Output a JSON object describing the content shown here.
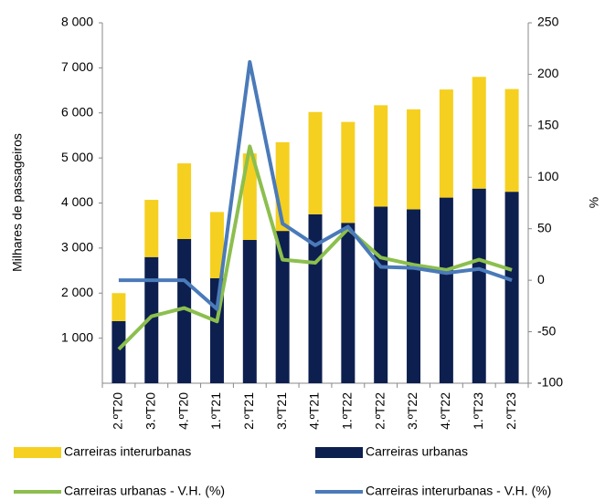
{
  "chart_data": {
    "type": "bar",
    "y_label": "Milhares de passageiros",
    "y2_label": "%",
    "categories": [
      "2.ºT20",
      "3.ºT20",
      "4.ºT20",
      "1.ºT21",
      "2.ºT21",
      "3.ºT21",
      "4.ºT21",
      "1.ºT22",
      "2.ºT22",
      "3.ºT22",
      "4.ºT22",
      "1.ºT23",
      "2.ºT23"
    ],
    "series": [
      {
        "name": "Carreiras interurbanas",
        "type": "bar",
        "color": "#f5d020",
        "values": [
          620,
          1270,
          1680,
          1470,
          1920,
          1970,
          2270,
          2240,
          2250,
          2220,
          2400,
          2480,
          2280
        ]
      },
      {
        "name": "Carreiras urbanas",
        "type": "bar",
        "color": "#0d1f4f",
        "values": [
          1380,
          2800,
          3200,
          2330,
          3180,
          3380,
          3750,
          3560,
          3920,
          3860,
          4120,
          4320,
          4250
        ]
      },
      {
        "name": "Carreiras urbanas - V.H. (%)",
        "type": "line",
        "axis": "y2",
        "color": "#8cbf4e",
        "values": [
          -67,
          -35,
          -27,
          -40,
          130,
          20,
          17,
          50,
          22,
          15,
          10,
          20,
          10
        ]
      },
      {
        "name": "Carreiras interurbanas - V.H. (%)",
        "type": "line",
        "axis": "y2",
        "color": "#4a7ab9",
        "values": [
          0,
          0,
          0,
          -28,
          212,
          55,
          34,
          52,
          13,
          12,
          7,
          11,
          0
        ]
      }
    ],
    "ylim": [
      0,
      8000
    ],
    "yticks": [
      {
        "value": 1000,
        "label": "1 000"
      },
      {
        "value": 2000,
        "label": "2 000"
      },
      {
        "value": 3000,
        "label": "3 000"
      },
      {
        "value": 4000,
        "label": "4 000"
      },
      {
        "value": 5000,
        "label": "5 000"
      },
      {
        "value": 6000,
        "label": "6 000"
      },
      {
        "value": 7000,
        "label": "7 000"
      },
      {
        "value": 8000,
        "label": "8 000"
      }
    ],
    "y2lim": [
      -100,
      250
    ],
    "y2ticks": [
      -100,
      -50,
      0,
      50,
      100,
      150,
      200,
      250
    ],
    "grid": false
  }
}
